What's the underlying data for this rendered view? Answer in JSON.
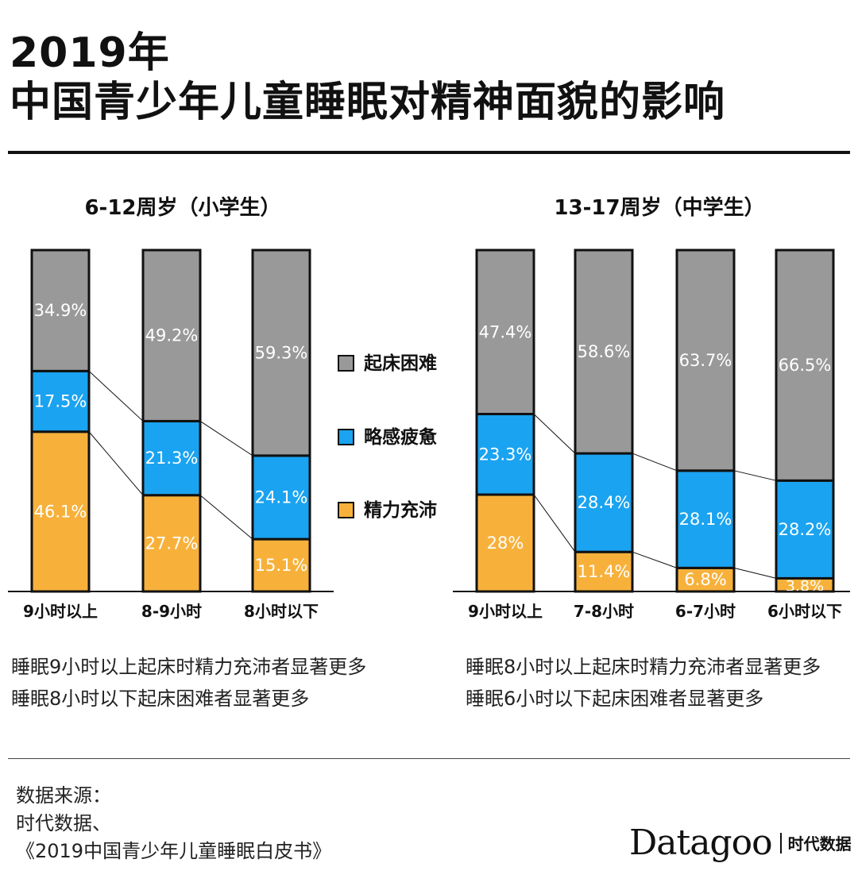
{
  "title_line1": "2019年",
  "title_line2": "中国青少年儿童睡眠对精神面貌的影响",
  "legend": [
    {
      "label": "起床困难",
      "color": "#999999"
    },
    {
      "label": "略感疲惫",
      "color": "#1aa3f0"
    },
    {
      "label": "精力充沛",
      "color": "#f7b13b"
    }
  ],
  "colors": {
    "bar_border": "#111111",
    "text_on_bar": "#ffffff",
    "axis": "#111111"
  },
  "chart_data": [
    {
      "type": "bar",
      "stacked": true,
      "title": "6-12周岁（小学生）",
      "categories": [
        "9小时以上",
        "8-9小时",
        "8小时以下"
      ],
      "series": [
        {
          "name": "精力充沛",
          "values": [
            46.1,
            27.7,
            15.1
          ],
          "labels": [
            "46.1%",
            "27.7%",
            "15.1%"
          ]
        },
        {
          "name": "略感疲惫",
          "values": [
            17.5,
            21.3,
            24.1
          ],
          "labels": [
            "17.5%",
            "21.3%",
            "24.1%"
          ]
        },
        {
          "name": "起床困难",
          "values": [
            34.9,
            49.2,
            59.3
          ],
          "labels": [
            "34.9%",
            "49.2%",
            "59.3%"
          ]
        }
      ]
    },
    {
      "type": "bar",
      "stacked": true,
      "title": "13-17周岁（中学生）",
      "categories": [
        "9小时以上",
        "7-8小时",
        "6-7小时",
        "6小时以下"
      ],
      "series": [
        {
          "name": "精力充沛",
          "values": [
            28,
            11.4,
            6.8,
            3.8
          ],
          "labels": [
            "28%",
            "11.4%",
            "6.8%",
            "3.8%"
          ]
        },
        {
          "name": "略感疲惫",
          "values": [
            23.3,
            28.4,
            28.1,
            28.2
          ],
          "labels": [
            "23.3%",
            "28.4%",
            "28.1%",
            "28.2%"
          ]
        },
        {
          "name": "起床困难",
          "values": [
            47.4,
            58.6,
            63.7,
            66.5
          ],
          "labels": [
            "47.4%",
            "58.6%",
            "63.7%",
            "66.5%"
          ]
        }
      ]
    }
  ],
  "notes_left": [
    "睡眠9小时以上起床时精力充沛者显著更多",
    "睡眠8小时以下起床困难者显著更多"
  ],
  "notes_right": [
    "睡眠8小时以上起床时精力充沛者显著更多",
    "睡眠6小时以下起床困难者显著更多"
  ],
  "source": {
    "label": "数据来源：",
    "line1": "时代数据、",
    "line2": "《2019中国青少年儿童睡眠白皮书》"
  },
  "brand": {
    "name": "Datagoo",
    "sub": "时代数据"
  }
}
